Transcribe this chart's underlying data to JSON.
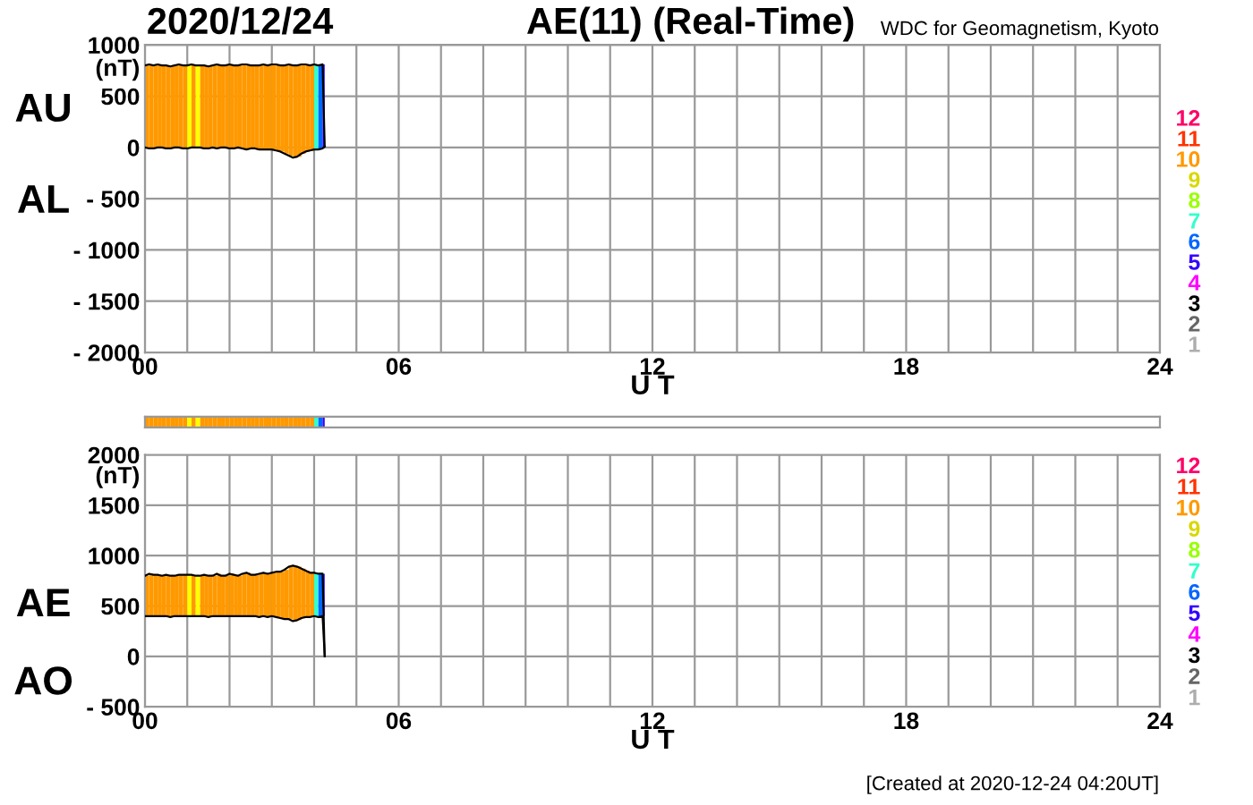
{
  "chart_data": [
    {
      "type": "line",
      "title": "2020/12/24",
      "subtitle": "AE(11) (Real-Time)",
      "annotations": [
        "WDC for Geomagnetism, Kyoto"
      ],
      "xlabel": "U T",
      "ylabel": "(nT)",
      "x": [
        0,
        0.1,
        0.2,
        0.3,
        0.4,
        0.5,
        0.6,
        0.7,
        0.8,
        0.9,
        1.0,
        1.1,
        1.2,
        1.3,
        1.4,
        1.5,
        1.6,
        1.7,
        1.8,
        1.9,
        2.0,
        2.1,
        2.2,
        2.3,
        2.4,
        2.5,
        2.6,
        2.7,
        2.8,
        2.9,
        3.0,
        3.1,
        3.2,
        3.3,
        3.4,
        3.5,
        3.6,
        3.7,
        3.8,
        3.9,
        4.0,
        4.1,
        4.2,
        4.25
      ],
      "series": [
        {
          "name": "AU",
          "color": "#000000",
          "values": [
            800,
            810,
            800,
            810,
            800,
            800,
            790,
            800,
            810,
            800,
            800,
            810,
            800,
            800,
            800,
            790,
            800,
            810,
            800,
            800,
            810,
            800,
            800,
            810,
            810,
            800,
            800,
            800,
            810,
            800,
            810,
            810,
            800,
            800,
            810,
            800,
            800,
            810,
            810,
            800,
            810,
            800,
            810,
            10
          ]
        },
        {
          "name": "AL",
          "color": "#000000",
          "values": [
            0,
            -10,
            -10,
            0,
            0,
            -10,
            -10,
            0,
            0,
            -10,
            -10,
            0,
            0,
            0,
            -10,
            -10,
            0,
            -10,
            0,
            0,
            -10,
            -10,
            0,
            -10,
            -20,
            -10,
            -10,
            -20,
            -20,
            -20,
            -20,
            -30,
            -40,
            -60,
            -80,
            -100,
            -90,
            -60,
            -40,
            -30,
            -20,
            -20,
            -10,
            10
          ]
        },
        {
          "name": "12",
          "color": "#ff0066",
          "type": "bar",
          "values": [
            null,
            null,
            null,
            null,
            null,
            null,
            null,
            null,
            null,
            null,
            null,
            null,
            null,
            null,
            null,
            null,
            null,
            null,
            null,
            null,
            null,
            null,
            null,
            null,
            null,
            null,
            null,
            null,
            null,
            null,
            null,
            null,
            null,
            null,
            null,
            null,
            null,
            null,
            null,
            null,
            null,
            null,
            null,
            null
          ]
        },
        {
          "name": "11",
          "color": "#ff3300",
          "type": "bar",
          "values": [
            null,
            null,
            null,
            null,
            null,
            null,
            null,
            null,
            null,
            null,
            null,
            null,
            null,
            null,
            null,
            null,
            null,
            null,
            null,
            null,
            null,
            null,
            null,
            null,
            null,
            null,
            null,
            null,
            null,
            null,
            null,
            null,
            null,
            null,
            null,
            null,
            null,
            null,
            null,
            null,
            null,
            null,
            null,
            null
          ]
        },
        {
          "name": "10",
          "color": "#ff9900",
          "type": "bar",
          "x": [
            0,
            0.1,
            0.2,
            0.3,
            0.4,
            0.5,
            0.6,
            0.7,
            0.8,
            0.9,
            1.1,
            1.3,
            1.4,
            1.5,
            1.6,
            1.7,
            1.8,
            1.9,
            2.0,
            2.1,
            2.2,
            2.3,
            2.4,
            2.5,
            2.6,
            2.7,
            2.8,
            2.9,
            3.0,
            3.1,
            3.2,
            3.3,
            3.4,
            3.5,
            3.6,
            3.7,
            3.8,
            3.9
          ],
          "base": [
            0,
            -10,
            -10,
            0,
            0,
            -10,
            -10,
            0,
            0,
            -10,
            0,
            0,
            -10,
            -10,
            0,
            -10,
            0,
            0,
            -10,
            -10,
            0,
            -10,
            -20,
            -10,
            -10,
            -20,
            -20,
            -20,
            -20,
            -30,
            -40,
            -60,
            -80,
            -100,
            -90,
            -60,
            -40,
            -30
          ],
          "values": [
            800,
            820,
            810,
            810,
            800,
            810,
            800,
            800,
            810,
            810,
            810,
            800,
            810,
            800,
            800,
            820,
            800,
            800,
            820,
            810,
            800,
            820,
            830,
            810,
            810,
            820,
            830,
            820,
            830,
            840,
            840,
            860,
            890,
            900,
            890,
            870,
            850,
            830
          ]
        },
        {
          "name": "9",
          "color": "#ffff00",
          "type": "bar",
          "x": [
            1.0,
            1.2
          ],
          "base": [
            -10,
            0
          ],
          "values": [
            810,
            800
          ]
        },
        {
          "name": "8",
          "color": "#99ff00",
          "type": "bar",
          "values": [
            null,
            null,
            null,
            null,
            null,
            null,
            null,
            null,
            null,
            null,
            null,
            null,
            null,
            null,
            null,
            null,
            null,
            null,
            null,
            null,
            null,
            null,
            null,
            null,
            null,
            null,
            null,
            null,
            null,
            null,
            null,
            null,
            null,
            null,
            null,
            null,
            null,
            null,
            null,
            null,
            null,
            null,
            null,
            null
          ]
        },
        {
          "name": "7",
          "color": "#33ffcc",
          "type": "bar",
          "x": [
            4.0
          ],
          "base": [
            -20
          ],
          "values": [
            830
          ]
        },
        {
          "name": "6",
          "color": "#0066ff",
          "type": "bar",
          "x": [
            4.1
          ],
          "base": [
            -20
          ],
          "values": [
            820
          ]
        },
        {
          "name": "5",
          "color": "#3300ff",
          "type": "bar",
          "x": [
            4.2
          ],
          "base": [
            -10
          ],
          "values": [
            820
          ]
        },
        {
          "name": "4",
          "color": "#ff00ff",
          "type": "bar",
          "values": [
            null,
            null,
            null,
            null,
            null,
            null,
            null,
            null,
            null,
            null,
            null,
            null,
            null,
            null,
            null,
            null,
            null,
            null,
            null,
            null,
            null,
            null,
            null,
            null,
            null,
            null,
            null,
            null,
            null,
            null,
            null,
            null,
            null,
            null,
            null,
            null,
            null,
            null,
            null,
            null,
            null,
            null,
            null,
            null
          ]
        },
        {
          "name": "3",
          "color": "#000000",
          "type": "bar",
          "values": [
            null,
            null,
            null,
            null,
            null,
            null,
            null,
            null,
            null,
            null,
            null,
            null,
            null,
            null,
            null,
            null,
            null,
            null,
            null,
            null,
            null,
            null,
            null,
            null,
            null,
            null,
            null,
            null,
            null,
            null,
            null,
            null,
            null,
            null,
            null,
            null,
            null,
            null,
            null,
            null,
            null,
            null,
            null,
            null
          ]
        },
        {
          "name": "2",
          "color": "#666666",
          "type": "bar",
          "values": [
            null,
            null,
            null,
            null,
            null,
            null,
            null,
            null,
            null,
            null,
            null,
            null,
            null,
            null,
            null,
            null,
            null,
            null,
            null,
            null,
            null,
            null,
            null,
            null,
            null,
            null,
            null,
            null,
            null,
            null,
            null,
            null,
            null,
            null,
            null,
            null,
            null,
            null,
            null,
            null,
            null,
            null,
            null,
            null
          ]
        },
        {
          "name": "1",
          "color": "#cccccc",
          "type": "bar",
          "values": [
            null,
            null,
            null,
            null,
            null,
            null,
            null,
            null,
            null,
            null,
            null,
            null,
            null,
            null,
            null,
            null,
            null,
            null,
            null,
            null,
            null,
            null,
            null,
            null,
            null,
            null,
            null,
            null,
            null,
            null,
            null,
            null,
            null,
            null,
            null,
            null,
            null,
            null,
            null,
            null,
            null,
            null,
            null,
            null
          ]
        }
      ],
      "xlim": [
        0,
        24
      ],
      "ylim": [
        -2000,
        1000
      ],
      "xticks": [
        {
          "value": 0,
          "label": "00"
        },
        {
          "value": 1,
          "label": null
        },
        {
          "value": 2,
          "label": null
        },
        {
          "value": 3,
          "label": null
        },
        {
          "value": 4,
          "label": null
        },
        {
          "value": 5,
          "label": null
        },
        {
          "value": 6,
          "label": "06"
        },
        {
          "value": 7,
          "label": null
        },
        {
          "value": 8,
          "label": null
        },
        {
          "value": 9,
          "label": null
        },
        {
          "value": 10,
          "label": null
        },
        {
          "value": 11,
          "label": null
        },
        {
          "value": 12,
          "label": "12"
        },
        {
          "value": 13,
          "label": null
        },
        {
          "value": 14,
          "label": null
        },
        {
          "value": 15,
          "label": null
        },
        {
          "value": 16,
          "label": null
        },
        {
          "value": 17,
          "label": null
        },
        {
          "value": 18,
          "label": "18"
        },
        {
          "value": 19,
          "label": null
        },
        {
          "value": 20,
          "label": null
        },
        {
          "value": 21,
          "label": null
        },
        {
          "value": 22,
          "label": null
        },
        {
          "value": 23,
          "label": null
        },
        {
          "value": 24,
          "label": "24"
        }
      ],
      "yticks": [
        {
          "value": -2000,
          "label": "- 2000"
        },
        {
          "value": -1500,
          "label": "- 1500"
        },
        {
          "value": -1000,
          "label": "- 1000"
        },
        {
          "value": -500,
          "label": "- 500"
        },
        0,
        500,
        1000
      ],
      "grid": true,
      "legend": "right",
      "marker": "none",
      "line_style": "solid"
    },
    {
      "type": "line",
      "annotations": [
        "[Created at 2020-12-24 04:20UT]"
      ],
      "xlabel": "U T",
      "ylabel": "(nT)",
      "x": [
        0,
        0.1,
        0.2,
        0.3,
        0.4,
        0.5,
        0.6,
        0.7,
        0.8,
        0.9,
        1.0,
        1.1,
        1.2,
        1.3,
        1.4,
        1.5,
        1.6,
        1.7,
        1.8,
        1.9,
        2.0,
        2.1,
        2.2,
        2.3,
        2.4,
        2.5,
        2.6,
        2.7,
        2.8,
        2.9,
        3.0,
        3.1,
        3.2,
        3.3,
        3.4,
        3.5,
        3.6,
        3.7,
        3.8,
        3.9,
        4.0,
        4.1,
        4.2,
        4.25
      ],
      "series": [
        {
          "name": "AE",
          "color": "#000000",
          "values": [
            800,
            820,
            810,
            810,
            800,
            810,
            800,
            800,
            810,
            810,
            810,
            810,
            800,
            800,
            810,
            800,
            800,
            820,
            800,
            800,
            820,
            810,
            800,
            820,
            830,
            810,
            810,
            820,
            830,
            820,
            830,
            840,
            840,
            860,
            890,
            900,
            890,
            870,
            850,
            830,
            830,
            820,
            820,
            0
          ]
        },
        {
          "name": "AO",
          "color": "#000000",
          "values": [
            400,
            400,
            400,
            400,
            400,
            400,
            390,
            400,
            400,
            400,
            400,
            400,
            400,
            400,
            400,
            390,
            400,
            400,
            400,
            400,
            400,
            400,
            400,
            400,
            400,
            400,
            400,
            390,
            400,
            390,
            400,
            390,
            380,
            370,
            370,
            350,
            360,
            380,
            390,
            390,
            400,
            390,
            400,
            10
          ]
        },
        {
          "name": "12",
          "color": "#ff0066",
          "type": "bar",
          "values": [
            null,
            null,
            null,
            null,
            null,
            null,
            null,
            null,
            null,
            null,
            null,
            null,
            null,
            null,
            null,
            null,
            null,
            null,
            null,
            null,
            null,
            null,
            null,
            null,
            null,
            null,
            null,
            null,
            null,
            null,
            null,
            null,
            null,
            null,
            null,
            null,
            null,
            null,
            null,
            null,
            null,
            null,
            null,
            null
          ]
        },
        {
          "name": "11",
          "color": "#ff3300",
          "type": "bar",
          "values": [
            null,
            null,
            null,
            null,
            null,
            null,
            null,
            null,
            null,
            null,
            null,
            null,
            null,
            null,
            null,
            null,
            null,
            null,
            null,
            null,
            null,
            null,
            null,
            null,
            null,
            null,
            null,
            null,
            null,
            null,
            null,
            null,
            null,
            null,
            null,
            null,
            null,
            null,
            null,
            null,
            null,
            null,
            null,
            null
          ]
        },
        {
          "name": "10",
          "color": "#ff9900",
          "type": "bar",
          "x": [
            0,
            0.1,
            0.2,
            0.3,
            0.4,
            0.5,
            0.6,
            0.7,
            0.8,
            0.9,
            1.1,
            1.3,
            1.4,
            1.5,
            1.6,
            1.7,
            1.8,
            1.9,
            2.0,
            2.1,
            2.2,
            2.3,
            2.4,
            2.5,
            2.6,
            2.7,
            2.8,
            2.9,
            3.0,
            3.1,
            3.2,
            3.3,
            3.4,
            3.5,
            3.6,
            3.7,
            3.8,
            3.9
          ],
          "base": [
            400,
            400,
            400,
            400,
            400,
            400,
            390,
            400,
            400,
            400,
            400,
            400,
            400,
            390,
            400,
            400,
            400,
            400,
            400,
            400,
            400,
            400,
            400,
            400,
            400,
            390,
            400,
            390,
            400,
            390,
            380,
            370,
            370,
            350,
            360,
            380,
            390,
            390
          ],
          "values": [
            400,
            420,
            410,
            410,
            400,
            410,
            410,
            400,
            410,
            410,
            410,
            400,
            410,
            410,
            400,
            420,
            400,
            400,
            420,
            410,
            400,
            420,
            430,
            410,
            410,
            430,
            430,
            430,
            430,
            450,
            460,
            490,
            520,
            550,
            530,
            490,
            460,
            440
          ]
        },
        {
          "name": "9",
          "color": "#ffff00",
          "type": "bar",
          "x": [
            1.0,
            1.2
          ],
          "base": [
            400,
            400
          ],
          "values": [
            410,
            400
          ]
        },
        {
          "name": "8",
          "color": "#99ff00",
          "type": "bar",
          "values": [
            null,
            null,
            null,
            null,
            null,
            null,
            null,
            null,
            null,
            null,
            null,
            null,
            null,
            null,
            null,
            null,
            null,
            null,
            null,
            null,
            null,
            null,
            null,
            null,
            null,
            null,
            null,
            null,
            null,
            null,
            null,
            null,
            null,
            null,
            null,
            null,
            null,
            null,
            null,
            null,
            null,
            null,
            null,
            null
          ]
        },
        {
          "name": "7",
          "color": "#33ffcc",
          "type": "bar",
          "x": [
            4.0
          ],
          "base": [
            400
          ],
          "values": [
            430
          ]
        },
        {
          "name": "6",
          "color": "#0066ff",
          "type": "bar",
          "x": [
            4.1
          ],
          "base": [
            390
          ],
          "values": [
            430
          ]
        },
        {
          "name": "5",
          "color": "#3300ff",
          "type": "bar",
          "x": [
            4.2
          ],
          "base": [
            400
          ],
          "values": [
            420
          ]
        },
        {
          "name": "4",
          "color": "#ff00ff",
          "type": "bar",
          "values": [
            null,
            null,
            null,
            null,
            null,
            null,
            null,
            null,
            null,
            null,
            null,
            null,
            null,
            null,
            null,
            null,
            null,
            null,
            null,
            null,
            null,
            null,
            null,
            null,
            null,
            null,
            null,
            null,
            null,
            null,
            null,
            null,
            null,
            null,
            null,
            null,
            null,
            null,
            null,
            null,
            null,
            null,
            null,
            null
          ]
        },
        {
          "name": "3",
          "color": "#000000",
          "type": "bar",
          "values": [
            null,
            null,
            null,
            null,
            null,
            null,
            null,
            null,
            null,
            null,
            null,
            null,
            null,
            null,
            null,
            null,
            null,
            null,
            null,
            null,
            null,
            null,
            null,
            null,
            null,
            null,
            null,
            null,
            null,
            null,
            null,
            null,
            null,
            null,
            null,
            null,
            null,
            null,
            null,
            null,
            null,
            null,
            null,
            null
          ]
        },
        {
          "name": "2",
          "color": "#666666",
          "type": "bar",
          "values": [
            null,
            null,
            null,
            null,
            null,
            null,
            null,
            null,
            null,
            null,
            null,
            null,
            null,
            null,
            null,
            null,
            null,
            null,
            null,
            null,
            null,
            null,
            null,
            null,
            null,
            null,
            null,
            null,
            null,
            null,
            null,
            null,
            null,
            null,
            null,
            null,
            null,
            null,
            null,
            null,
            null,
            null,
            null,
            null
          ]
        },
        {
          "name": "1",
          "color": "#cccccc",
          "type": "bar",
          "values": [
            null,
            null,
            null,
            null,
            null,
            null,
            null,
            null,
            null,
            null,
            null,
            null,
            null,
            null,
            null,
            null,
            null,
            null,
            null,
            null,
            null,
            null,
            null,
            null,
            null,
            null,
            null,
            null,
            null,
            null,
            null,
            null,
            null,
            null,
            null,
            null,
            null,
            null,
            null,
            null,
            null,
            null,
            null,
            null
          ]
        }
      ],
      "xlim": [
        0,
        24
      ],
      "ylim": [
        -500,
        2000
      ],
      "xticks": [
        {
          "value": 0,
          "label": "00"
        },
        {
          "value": 1,
          "label": null
        },
        {
          "value": 2,
          "label": null
        },
        {
          "value": 3,
          "label": null
        },
        {
          "value": 4,
          "label": null
        },
        {
          "value": 5,
          "label": null
        },
        {
          "value": 6,
          "label": "06"
        },
        {
          "value": 7,
          "label": null
        },
        {
          "value": 8,
          "label": null
        },
        {
          "value": 9,
          "label": null
        },
        {
          "value": 10,
          "label": null
        },
        {
          "value": 11,
          "label": null
        },
        {
          "value": 12,
          "label": "12"
        },
        {
          "value": 13,
          "label": null
        },
        {
          "value": 14,
          "label": null
        },
        {
          "value": 15,
          "label": null
        },
        {
          "value": 16,
          "label": null
        },
        {
          "value": 17,
          "label": null
        },
        {
          "value": 18,
          "label": "18"
        },
        {
          "value": 19,
          "label": null
        },
        {
          "value": 20,
          "label": null
        },
        {
          "value": 21,
          "label": null
        },
        {
          "value": 22,
          "label": null
        },
        {
          "value": 23,
          "label": null
        },
        {
          "value": 24,
          "label": "24"
        }
      ],
      "yticks": [
        {
          "value": -500,
          "label": "- 500"
        },
        0,
        500,
        1000,
        1500,
        2000
      ],
      "grid": true,
      "legend": "right",
      "marker": "none",
      "line_style": "solid"
    }
  ]
}
